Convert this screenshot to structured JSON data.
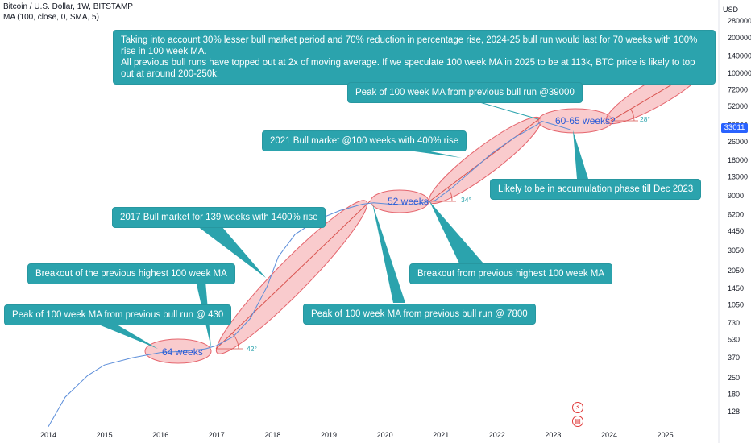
{
  "header": {
    "symbol_line": "Bitcoin / U.S. Dollar, 1W, BITSTAMP",
    "indicator_line": "MA (100, close, 0, SMA, 5)",
    "currency": "USD"
  },
  "colors": {
    "price_line": "#5b8dd9",
    "ma_line": "#9c6fd0",
    "ellipse_fill": "#f7b5b8",
    "ellipse_stroke": "#e5666e",
    "callout_bg": "#2ba3ad",
    "axis_text": "#131722",
    "pill_text": "#2a5bd7",
    "last_price_bg": "#2962ff"
  },
  "callouts": [
    {
      "id": "projection",
      "lines": [
        "Taking into account 30% lesser bull market period and 70% reduction in percentage rise, 2024-25 bull run would last for 70 weeks with 100% rise in 100 week MA.",
        "All previous bull runs have topped out at 2x of moving average. If we speculate 100 week MA in 2025 to be at 113k, BTC price is likely to top out at around 200-250k."
      ]
    },
    {
      "id": "peak-39000",
      "lines": [
        "Peak of 100 week MA from previous bull run @39000"
      ]
    },
    {
      "id": "bull-2021",
      "lines": [
        "2021 Bull market @100 weeks with 400% rise"
      ]
    },
    {
      "id": "accumulation",
      "lines": [
        "Likely to be in accumulation phase till Dec 2023"
      ]
    },
    {
      "id": "bull-2017",
      "lines": [
        "2017 Bull market for 139 weeks with 1400% rise"
      ]
    },
    {
      "id": "breakout-prev-ma",
      "lines": [
        "Breakout from previous highest 100 week MA"
      ]
    },
    {
      "id": "breakout-highest",
      "lines": [
        "Breakout of the previous highest 100 week MA"
      ]
    },
    {
      "id": "peak-430",
      "lines": [
        "Peak of 100 week MA from previous bull run @ 430"
      ]
    },
    {
      "id": "peak-7800",
      "lines": [
        "Peak of 100 week MA from previous bull run @ 7800"
      ]
    }
  ],
  "pill_labels": {
    "weeks_64": "64 weeks",
    "weeks_52": "52 weeks",
    "weeks_60_65": "60-65 weeks?"
  },
  "angle_labels": {
    "a42": "42°",
    "a34": "34°",
    "a28": "28°"
  },
  "chart_data": {
    "type": "line",
    "title": "Bitcoin / U.S. Dollar, 1W, BITSTAMP",
    "x_axis": {
      "ticks": [
        "2014",
        "2015",
        "2016",
        "2017",
        "2018",
        "2019",
        "2020",
        "2021",
        "2022",
        "2023",
        "2024",
        "2025"
      ]
    },
    "y_axis": {
      "scale": "log",
      "unit": "USD",
      "range": [
        100,
        400000
      ],
      "ticks": [
        "280000",
        "200000",
        "140000",
        "100000",
        "72000",
        "52000",
        "36000",
        "26000",
        "18000",
        "13000",
        "9000",
        "6200",
        "4450",
        "3050",
        "2050",
        "1450",
        "1050",
        "730",
        "530",
        "370",
        "250",
        "180",
        "128"
      ]
    },
    "last_price": "33011",
    "series": [
      {
        "name": "MA (100, close, 0, SMA, 5)",
        "points": [
          [
            2014.0,
            95
          ],
          [
            2014.3,
            170
          ],
          [
            2014.7,
            260
          ],
          [
            2015.0,
            320
          ],
          [
            2015.5,
            370
          ],
          [
            2016.0,
            410
          ],
          [
            2016.4,
            420
          ],
          [
            2016.8,
            440
          ],
          [
            2017.0,
            470
          ],
          [
            2017.3,
            560
          ],
          [
            2017.6,
            800
          ],
          [
            2017.9,
            1500
          ],
          [
            2018.1,
            2700
          ],
          [
            2018.4,
            4200
          ],
          [
            2018.8,
            5600
          ],
          [
            2019.2,
            6700
          ],
          [
            2019.6,
            7600
          ],
          [
            2019.8,
            7800
          ],
          [
            2020.1,
            7600
          ],
          [
            2020.5,
            7500
          ],
          [
            2020.9,
            8200
          ],
          [
            2021.2,
            10500
          ],
          [
            2021.5,
            14000
          ],
          [
            2021.9,
            20500
          ],
          [
            2022.3,
            28000
          ],
          [
            2022.7,
            36000
          ],
          [
            2022.8,
            38800
          ],
          [
            2023.0,
            36500
          ],
          [
            2023.3,
            33011
          ]
        ]
      }
    ],
    "annotations": [
      {
        "label": "64 weeks",
        "from": 2016.0,
        "to": 2017.0,
        "value": 430
      },
      {
        "label": "52 weeks",
        "from": 2019.8,
        "to": 2020.7,
        "value": 7800
      },
      {
        "label": "60-65 weeks?",
        "from": 2022.8,
        "to": 2024.0,
        "value": 38000
      }
    ]
  }
}
